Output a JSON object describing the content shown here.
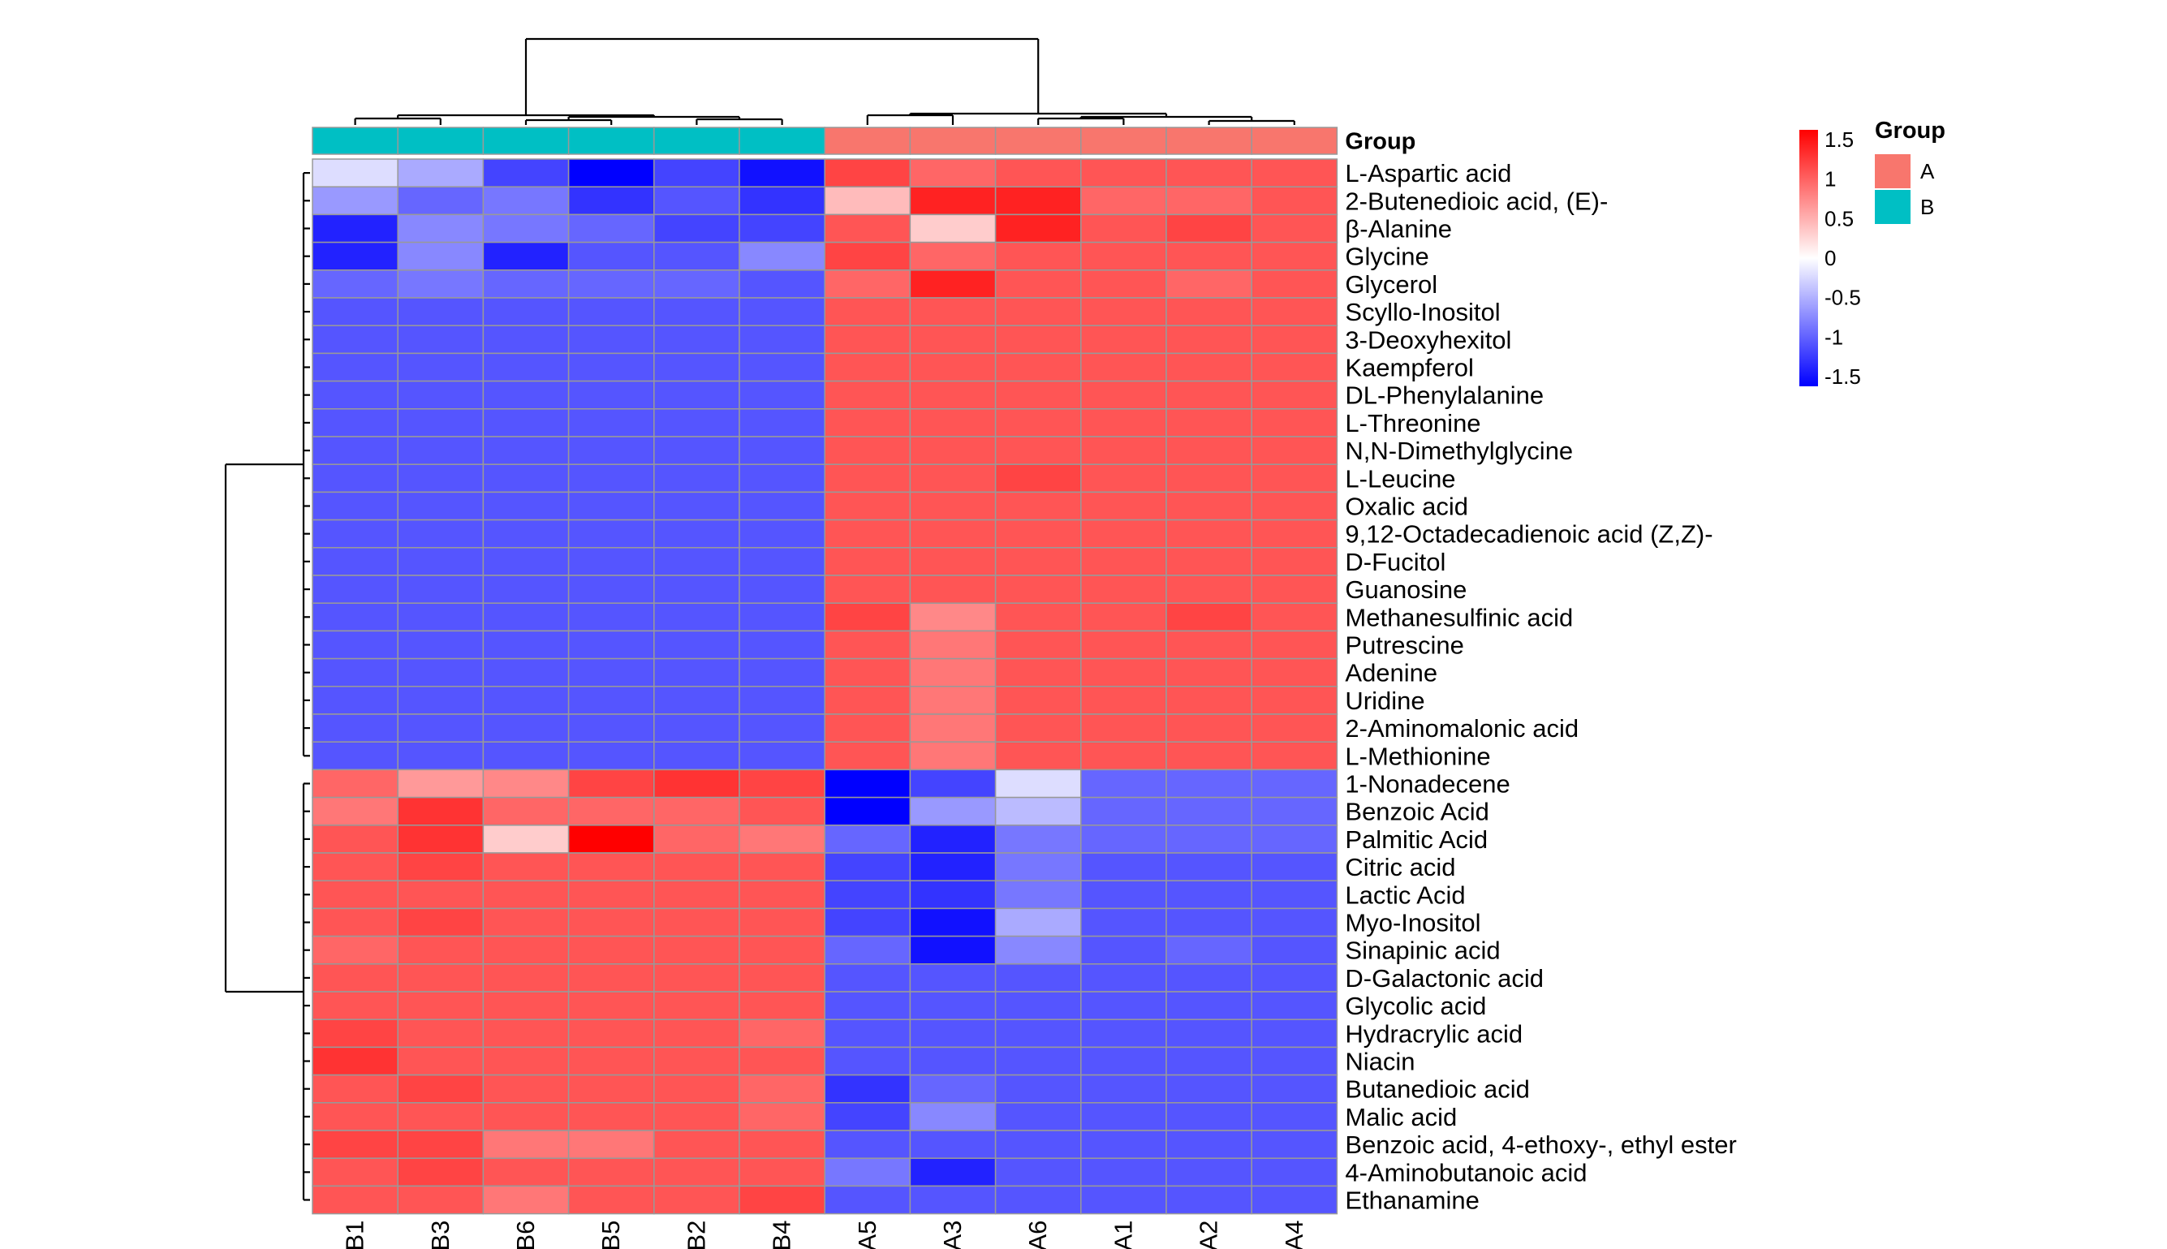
{
  "chart_data": {
    "type": "heatmap",
    "columns": [
      "B1",
      "B3",
      "B6",
      "B5",
      "B2",
      "B4",
      "A5",
      "A3",
      "A6",
      "A1",
      "A2",
      "A4"
    ],
    "column_groups": [
      "B",
      "B",
      "B",
      "B",
      "B",
      "B",
      "A",
      "A",
      "A",
      "A",
      "A",
      "A"
    ],
    "group_annotation_label": "Group",
    "rows": [
      "L-Aspartic acid",
      "2-Butenedioic acid, (E)-",
      "β-Alanine",
      "Glycine",
      "Glycerol",
      "Scyllo-Inositol",
      "3-Deoxyhexitol",
      "Kaempferol",
      "DL-Phenylalanine",
      "L-Threonine",
      "N,N-Dimethylglycine",
      "L-Leucine",
      "Oxalic acid",
      "9,12-Octadecadienoic acid (Z,Z)-",
      "D-Fucitol",
      "Guanosine",
      "Methanesulfinic acid",
      "Putrescine",
      "Adenine",
      "Uridine",
      "2-Aminomalonic acid",
      "L-Methionine",
      "1-Nonadecene",
      "Benzoic Acid",
      "Palmitic Acid",
      "Citric acid",
      "Lactic Acid",
      "Myo-Inositol",
      "Sinapinic acid",
      "D-Galactonic acid",
      "Glycolic acid",
      "Hydracrylic acid",
      "Niacin",
      "Butanedioic acid",
      "Malic acid",
      "Benzoic acid, 4-ethoxy-, ethyl ester",
      "4-Aminobutanoic acid",
      "Ethanamine"
    ],
    "values": [
      [
        -0.2,
        -0.5,
        -1.1,
        -1.5,
        -1.1,
        -1.4,
        1.1,
        0.9,
        1.0,
        1.0,
        1.0,
        1.0
      ],
      [
        -0.6,
        -0.9,
        -0.8,
        -1.2,
        -1.0,
        -1.2,
        0.4,
        1.3,
        1.3,
        0.9,
        0.9,
        1.0
      ],
      [
        -1.3,
        -0.7,
        -0.8,
        -0.9,
        -1.1,
        -1.1,
        1.0,
        0.3,
        1.3,
        1.0,
        1.1,
        1.0
      ],
      [
        -1.3,
        -0.7,
        -1.3,
        -1.0,
        -1.0,
        -0.7,
        1.1,
        0.9,
        1.0,
        1.0,
        1.0,
        1.0
      ],
      [
        -0.9,
        -0.8,
        -0.9,
        -0.9,
        -0.9,
        -1.0,
        0.9,
        1.3,
        1.0,
        1.0,
        0.9,
        1.0
      ],
      [
        -1.0,
        -1.0,
        -1.0,
        -1.0,
        -1.0,
        -1.0,
        1.0,
        1.0,
        1.0,
        1.0,
        1.0,
        1.0
      ],
      [
        -1.0,
        -1.0,
        -1.0,
        -1.0,
        -1.0,
        -1.0,
        1.0,
        1.0,
        1.0,
        1.0,
        1.0,
        1.0
      ],
      [
        -1.0,
        -1.0,
        -1.0,
        -1.0,
        -1.0,
        -1.0,
        1.0,
        1.0,
        1.0,
        1.0,
        1.0,
        1.0
      ],
      [
        -1.0,
        -1.0,
        -1.0,
        -1.0,
        -1.0,
        -1.0,
        1.0,
        1.0,
        1.0,
        1.0,
        1.0,
        1.0
      ],
      [
        -1.0,
        -1.0,
        -1.0,
        -1.0,
        -1.0,
        -1.0,
        1.0,
        1.0,
        1.0,
        1.0,
        1.0,
        1.0
      ],
      [
        -1.0,
        -1.0,
        -1.0,
        -1.0,
        -1.0,
        -1.0,
        1.0,
        1.0,
        1.0,
        1.0,
        1.0,
        1.0
      ],
      [
        -1.0,
        -1.0,
        -1.0,
        -1.0,
        -1.0,
        -1.0,
        1.0,
        1.0,
        1.1,
        1.0,
        1.0,
        1.0
      ],
      [
        -1.0,
        -1.0,
        -1.0,
        -1.0,
        -1.0,
        -1.0,
        1.0,
        1.0,
        1.0,
        1.0,
        1.0,
        1.0
      ],
      [
        -1.0,
        -1.0,
        -1.0,
        -1.0,
        -1.0,
        -1.0,
        1.0,
        1.0,
        1.0,
        1.0,
        1.0,
        1.0
      ],
      [
        -1.0,
        -1.0,
        -1.0,
        -1.0,
        -1.0,
        -1.0,
        1.0,
        1.0,
        1.0,
        1.0,
        1.0,
        1.0
      ],
      [
        -1.0,
        -1.0,
        -1.0,
        -1.0,
        -1.0,
        -1.0,
        1.0,
        1.0,
        1.0,
        1.0,
        1.0,
        1.0
      ],
      [
        -1.0,
        -1.0,
        -1.0,
        -1.0,
        -1.0,
        -1.0,
        1.1,
        0.7,
        1.0,
        1.0,
        1.1,
        1.0
      ],
      [
        -1.0,
        -1.0,
        -1.0,
        -1.0,
        -1.0,
        -1.0,
        1.0,
        0.8,
        1.0,
        1.0,
        1.0,
        1.0
      ],
      [
        -1.0,
        -1.0,
        -1.0,
        -1.0,
        -1.0,
        -1.0,
        1.0,
        0.8,
        1.0,
        1.0,
        1.0,
        1.0
      ],
      [
        -1.0,
        -1.0,
        -1.0,
        -1.0,
        -1.0,
        -1.0,
        1.0,
        0.8,
        1.0,
        1.0,
        1.0,
        1.0
      ],
      [
        -1.0,
        -1.0,
        -1.0,
        -1.0,
        -1.0,
        -1.0,
        1.0,
        0.8,
        1.0,
        1.0,
        1.0,
        1.0
      ],
      [
        -1.0,
        -1.0,
        -1.0,
        -1.0,
        -1.0,
        -1.0,
        1.0,
        0.8,
        1.0,
        1.0,
        1.0,
        1.0
      ],
      [
        0.9,
        0.6,
        0.7,
        1.1,
        1.2,
        1.1,
        -1.5,
        -1.1,
        -0.2,
        -0.9,
        -0.9,
        -0.9
      ],
      [
        0.8,
        1.2,
        0.9,
        0.9,
        0.9,
        1.0,
        -1.6,
        -0.6,
        -0.4,
        -0.9,
        -0.9,
        -0.9
      ],
      [
        1.0,
        1.2,
        0.3,
        1.6,
        0.9,
        0.8,
        -0.9,
        -1.3,
        -0.8,
        -0.9,
        -0.9,
        -0.9
      ],
      [
        1.0,
        1.1,
        1.0,
        1.0,
        1.0,
        1.0,
        -1.1,
        -1.3,
        -0.8,
        -1.0,
        -1.0,
        -1.0
      ],
      [
        1.0,
        1.0,
        1.0,
        1.0,
        1.0,
        1.0,
        -1.1,
        -1.2,
        -0.8,
        -1.0,
        -1.0,
        -1.0
      ],
      [
        1.0,
        1.1,
        1.0,
        1.0,
        1.0,
        1.0,
        -1.1,
        -1.4,
        -0.5,
        -1.0,
        -1.0,
        -1.0
      ],
      [
        0.9,
        1.0,
        1.0,
        1.0,
        1.0,
        1.0,
        -0.9,
        -1.4,
        -0.7,
        -1.0,
        -0.9,
        -1.0
      ],
      [
        1.0,
        1.0,
        1.0,
        1.0,
        1.0,
        1.0,
        -1.0,
        -1.0,
        -1.0,
        -1.0,
        -1.0,
        -1.0
      ],
      [
        1.0,
        1.0,
        1.0,
        1.0,
        1.0,
        1.0,
        -1.0,
        -1.0,
        -1.0,
        -1.0,
        -1.0,
        -1.0
      ],
      [
        1.1,
        1.0,
        1.0,
        1.0,
        1.0,
        0.9,
        -1.0,
        -1.0,
        -1.0,
        -1.0,
        -1.0,
        -1.0
      ],
      [
        1.2,
        1.0,
        1.0,
        1.0,
        1.0,
        1.0,
        -1.0,
        -1.0,
        -1.0,
        -1.0,
        -1.0,
        -1.0
      ],
      [
        1.0,
        1.1,
        1.0,
        1.0,
        1.0,
        0.9,
        -1.2,
        -0.9,
        -1.0,
        -1.0,
        -1.0,
        -1.0
      ],
      [
        1.0,
        1.0,
        1.0,
        1.0,
        1.0,
        0.9,
        -1.1,
        -0.7,
        -1.0,
        -1.0,
        -1.0,
        -1.0
      ],
      [
        1.1,
        1.1,
        0.8,
        0.8,
        1.0,
        1.0,
        -1.0,
        -1.0,
        -1.0,
        -1.0,
        -1.0,
        -1.0
      ],
      [
        1.0,
        1.1,
        1.0,
        1.0,
        1.0,
        1.0,
        -0.8,
        -1.3,
        -1.0,
        -1.0,
        -1.0,
        -1.0
      ],
      [
        1.0,
        1.0,
        0.8,
        1.0,
        1.0,
        1.1,
        -1.0,
        -1.0,
        -1.0,
        -1.0,
        -1.0,
        -1.0
      ]
    ],
    "color_scale": {
      "min": -1.5,
      "max": 1.5,
      "low_color": "#0000ff",
      "mid_color": "#ffffff",
      "high_color": "#ff0000",
      "ticks": [
        "1.5",
        "1",
        "0.5",
        "0",
        "-0.5",
        "-1",
        "-1.5"
      ]
    },
    "legend": {
      "title": "Group",
      "items": [
        {
          "label": "A",
          "color": "#f8766d"
        },
        {
          "label": "B",
          "color": "#00bfc4"
        }
      ]
    },
    "row_dendrogram": true,
    "column_dendrogram": true,
    "cell_border_color": "#999999"
  }
}
